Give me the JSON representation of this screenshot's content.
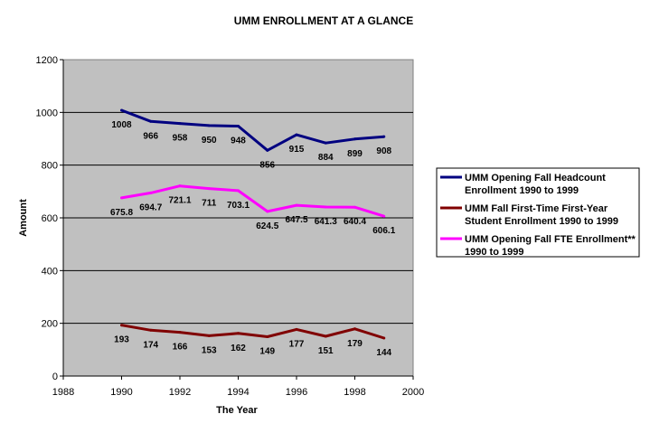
{
  "chart_data": {
    "type": "line",
    "title": "UMM ENROLLMENT AT A GLANCE",
    "xlabel": "The Year",
    "ylabel": "Amount",
    "xlim": [
      1988,
      2000
    ],
    "ylim": [
      0,
      1200
    ],
    "x_ticks": [
      1988,
      1990,
      1992,
      1994,
      1996,
      1998,
      2000
    ],
    "y_ticks": [
      0,
      200,
      400,
      600,
      800,
      1000,
      1200
    ],
    "grid": "horizontal",
    "plot_background": "#c0c0c0",
    "legend_position": "right",
    "x": [
      1990,
      1991,
      1992,
      1993,
      1994,
      1995,
      1996,
      1997,
      1998,
      1999
    ],
    "series": [
      {
        "legend": [
          "UMM Opening Fall Headcount",
          "Enrollment  1990 to 1999"
        ],
        "color": "#000080",
        "values": [
          1008,
          966,
          958,
          950,
          948,
          856,
          915,
          884,
          899,
          908
        ],
        "labels": [
          "1008",
          "966",
          "958",
          "950",
          "948",
          "856",
          "915",
          "884",
          "899",
          "908"
        ]
      },
      {
        "legend": [
          "UMM Fall First-Time First-Year",
          "Student Enrollment  1990 to 1999"
        ],
        "color": "#800000",
        "values": [
          193,
          174,
          166,
          153,
          162,
          149,
          177,
          151,
          179,
          144
        ],
        "labels": [
          "193",
          "174",
          "166",
          "153",
          "162",
          "149",
          "177",
          "151",
          "179",
          "144"
        ]
      },
      {
        "legend": [
          "UMM Opening Fall FTE Enrollment**",
          "1990 to 1999"
        ],
        "color": "#ff00ff",
        "values": [
          675.8,
          694.7,
          721.1,
          711,
          703.1,
          624.5,
          647.5,
          641.3,
          640.4,
          606.1
        ],
        "labels": [
          "675.8",
          "694.7",
          "721.1",
          "711",
          "703.1",
          "624.5",
          "647.5",
          "641.3",
          "640.4",
          "606.1"
        ]
      }
    ]
  }
}
